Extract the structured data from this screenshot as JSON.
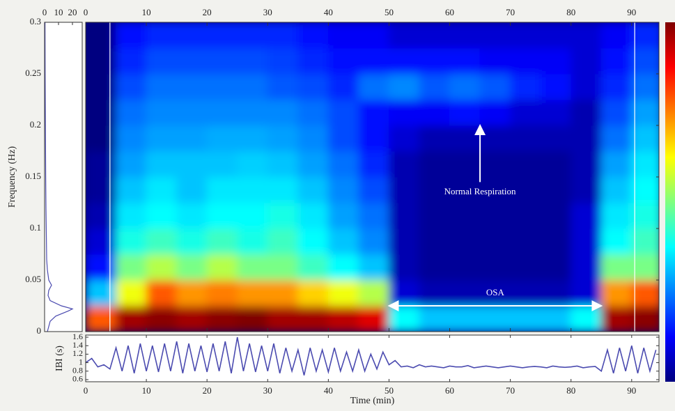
{
  "chart_data": [
    {
      "type": "heatmap",
      "ylabel": "Frequency (Hz)",
      "xlim": [
        0,
        94.5
      ],
      "xticks": [
        0,
        10,
        20,
        30,
        40,
        50,
        60,
        70,
        80,
        90
      ],
      "ylim": [
        0,
        0.3
      ],
      "yticks": [
        0,
        0.05,
        0.1,
        0.15,
        0.2,
        0.25,
        0.3
      ],
      "x_bins": [
        0,
        5,
        10,
        15,
        20,
        25,
        30,
        35,
        40,
        45,
        50,
        55,
        60,
        65,
        70,
        75,
        80,
        85,
        90,
        95
      ],
      "y_bins": [
        0,
        0.025,
        0.05,
        0.075,
        0.1,
        0.125,
        0.15,
        0.175,
        0.2,
        0.225,
        0.25,
        0.275,
        0.3
      ],
      "values": [
        [
          0.75,
          0.9,
          0.92,
          0.9,
          0.92,
          0.93,
          0.9,
          0.9,
          0.88,
          0.85,
          0.4,
          0.35,
          0.35,
          0.35,
          0.35,
          0.35,
          0.4,
          0.9,
          0.92
        ],
        [
          0.35,
          0.6,
          0.75,
          0.7,
          0.72,
          0.7,
          0.7,
          0.65,
          0.6,
          0.55,
          0.15,
          0.12,
          0.12,
          0.12,
          0.12,
          0.12,
          0.15,
          0.7,
          0.75
        ],
        [
          0.2,
          0.5,
          0.55,
          0.5,
          0.55,
          0.5,
          0.5,
          0.45,
          0.4,
          0.35,
          0.12,
          0.1,
          0.1,
          0.1,
          0.1,
          0.1,
          0.15,
          0.5,
          0.5
        ],
        [
          0.15,
          0.42,
          0.45,
          0.42,
          0.45,
          0.42,
          0.45,
          0.4,
          0.35,
          0.3,
          0.12,
          0.1,
          0.1,
          0.1,
          0.1,
          0.1,
          0.15,
          0.4,
          0.45
        ],
        [
          0.12,
          0.38,
          0.4,
          0.38,
          0.4,
          0.4,
          0.42,
          0.38,
          0.32,
          0.28,
          0.12,
          0.1,
          0.1,
          0.1,
          0.1,
          0.1,
          0.15,
          0.38,
          0.42
        ],
        [
          0.1,
          0.35,
          0.38,
          0.35,
          0.38,
          0.38,
          0.38,
          0.35,
          0.3,
          0.25,
          0.12,
          0.1,
          0.1,
          0.1,
          0.1,
          0.1,
          0.12,
          0.35,
          0.4
        ],
        [
          0.1,
          0.32,
          0.35,
          0.35,
          0.35,
          0.36,
          0.35,
          0.32,
          0.28,
          0.22,
          0.12,
          0.1,
          0.1,
          0.1,
          0.1,
          0.1,
          0.12,
          0.32,
          0.38
        ],
        [
          0.08,
          0.3,
          0.32,
          0.32,
          0.33,
          0.33,
          0.32,
          0.3,
          0.25,
          0.2,
          0.15,
          0.12,
          0.12,
          0.12,
          0.12,
          0.12,
          0.12,
          0.28,
          0.35
        ],
        [
          0.08,
          0.28,
          0.3,
          0.3,
          0.3,
          0.3,
          0.3,
          0.28,
          0.25,
          0.2,
          0.18,
          0.18,
          0.2,
          0.18,
          0.15,
          0.15,
          0.12,
          0.25,
          0.32
        ],
        [
          0.08,
          0.25,
          0.28,
          0.28,
          0.28,
          0.28,
          0.26,
          0.25,
          0.22,
          0.28,
          0.3,
          0.26,
          0.28,
          0.26,
          0.22,
          0.2,
          0.15,
          0.22,
          0.28
        ],
        [
          0.08,
          0.22,
          0.25,
          0.25,
          0.25,
          0.25,
          0.24,
          0.22,
          0.2,
          0.2,
          0.2,
          0.2,
          0.2,
          0.18,
          0.18,
          0.18,
          0.15,
          0.2,
          0.25
        ],
        [
          0.08,
          0.2,
          0.22,
          0.22,
          0.22,
          0.22,
          0.22,
          0.2,
          0.18,
          0.18,
          0.15,
          0.15,
          0.15,
          0.15,
          0.15,
          0.15,
          0.15,
          0.18,
          0.22
        ]
      ],
      "vlines": [
        4,
        90.5
      ],
      "vline_color": "#ffffff",
      "annotations": [
        {
          "text": "Normal Respiration",
          "x": 65,
          "y": 0.135
        },
        {
          "text": "OSA",
          "x": 67.5,
          "y": 0.037
        }
      ],
      "arrows": [
        {
          "from": [
            65,
            0.145
          ],
          "to": [
            65,
            0.2
          ],
          "both_ends": false
        },
        {
          "from": [
            50,
            0.025
          ],
          "to": [
            85,
            0.025
          ],
          "both_ends": true
        }
      ]
    },
    {
      "type": "line",
      "xlim": [
        0,
        27
      ],
      "xticks": [
        0,
        10,
        20
      ],
      "ylim": [
        0,
        0.3
      ],
      "color": "#4b4bb0",
      "y": [
        0,
        0.005,
        0.01,
        0.015,
        0.02,
        0.022,
        0.025,
        0.03,
        0.035,
        0.04,
        0.045,
        0.05,
        0.06,
        0.07,
        0.08,
        0.1,
        0.12,
        0.15,
        0.2,
        0.25,
        0.3
      ],
      "values": [
        2,
        3,
        4,
        8,
        17,
        20,
        12,
        4,
        2.5,
        3,
        5,
        3,
        2,
        1.5,
        1.4,
        1.2,
        1,
        0.8,
        0.6,
        0.4,
        0.3
      ]
    },
    {
      "type": "line",
      "xlabel": "Time (min)",
      "ylabel": "IBI (s)",
      "xlim": [
        0,
        94.5
      ],
      "xticks": [
        0,
        10,
        20,
        30,
        40,
        50,
        60,
        70,
        80,
        90
      ],
      "ylim": [
        0.55,
        1.65
      ],
      "yticks": [
        0.6,
        0.8,
        1,
        1.2,
        1.4,
        1.6
      ],
      "color": "#4b4bb0",
      "x": [
        0,
        1,
        2,
        3,
        4,
        5,
        6,
        7,
        8,
        9,
        10,
        11,
        12,
        13,
        14,
        15,
        16,
        17,
        18,
        19,
        20,
        21,
        22,
        23,
        24,
        25,
        26,
        27,
        28,
        29,
        30,
        31,
        32,
        33,
        34,
        35,
        36,
        37,
        38,
        39,
        40,
        41,
        42,
        43,
        44,
        45,
        46,
        47,
        48,
        49,
        50,
        51,
        52,
        53,
        54,
        55,
        56,
        57,
        58,
        59,
        60,
        61,
        62,
        63,
        64,
        65,
        66,
        67,
        68,
        69,
        70,
        71,
        72,
        73,
        74,
        75,
        76,
        77,
        78,
        79,
        80,
        81,
        82,
        83,
        84,
        85,
        86,
        87,
        88,
        89,
        90,
        91,
        92,
        93,
        94
      ],
      "values": [
        1.0,
        1.1,
        0.9,
        0.95,
        0.85,
        1.35,
        0.8,
        1.4,
        0.75,
        1.45,
        0.8,
        1.4,
        0.78,
        1.45,
        0.8,
        1.5,
        0.75,
        1.45,
        0.8,
        1.4,
        0.78,
        1.45,
        0.8,
        1.5,
        0.75,
        1.6,
        0.8,
        1.45,
        0.78,
        1.4,
        0.8,
        1.45,
        0.75,
        1.35,
        0.8,
        1.3,
        0.7,
        1.35,
        0.8,
        1.3,
        0.78,
        1.35,
        0.8,
        1.25,
        0.8,
        1.3,
        0.8,
        1.2,
        0.85,
        1.25,
        0.95,
        1.05,
        0.9,
        0.92,
        0.88,
        0.95,
        0.9,
        0.92,
        0.9,
        0.88,
        0.92,
        0.9,
        0.9,
        0.93,
        0.88,
        0.9,
        0.92,
        0.9,
        0.88,
        0.9,
        0.92,
        0.9,
        0.88,
        0.9,
        0.91,
        0.9,
        0.88,
        0.92,
        0.9,
        0.89,
        0.9,
        0.92,
        0.88,
        0.9,
        0.91,
        0.8,
        1.3,
        0.75,
        1.35,
        0.8,
        1.4,
        0.75,
        1.35,
        0.8,
        1.3
      ]
    }
  ]
}
